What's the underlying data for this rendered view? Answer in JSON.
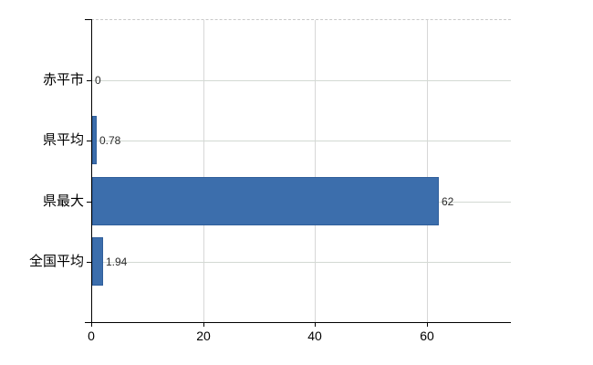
{
  "chart_data": {
    "type": "bar",
    "orientation": "horizontal",
    "title": "",
    "xlabel": "",
    "ylabel": "",
    "categories": [
      "赤平市",
      "県平均",
      "県最大",
      "全国平均"
    ],
    "values": [
      0,
      0.78,
      62,
      1.94
    ],
    "value_labels": [
      "0",
      "0.78",
      "62",
      "1.94"
    ],
    "xlim": [
      0,
      75
    ],
    "x_ticks": [
      0,
      20,
      40,
      60
    ],
    "x_tick_labels": [
      "0",
      "20",
      "40",
      "60"
    ],
    "grid": true,
    "legend": false,
    "colors": {
      "bar_fill": "#3c6eac",
      "bar_border": "#2f5e9b",
      "gridline_h": "#d3d9d3",
      "gridline_v": "#d7d7d7",
      "top_border_dashed": "#c9c9c9",
      "axis": "#000000",
      "category_label": "#000000",
      "tick_label": "#000000",
      "value_label": "#2b2b2b",
      "background": "#ffffff"
    }
  }
}
